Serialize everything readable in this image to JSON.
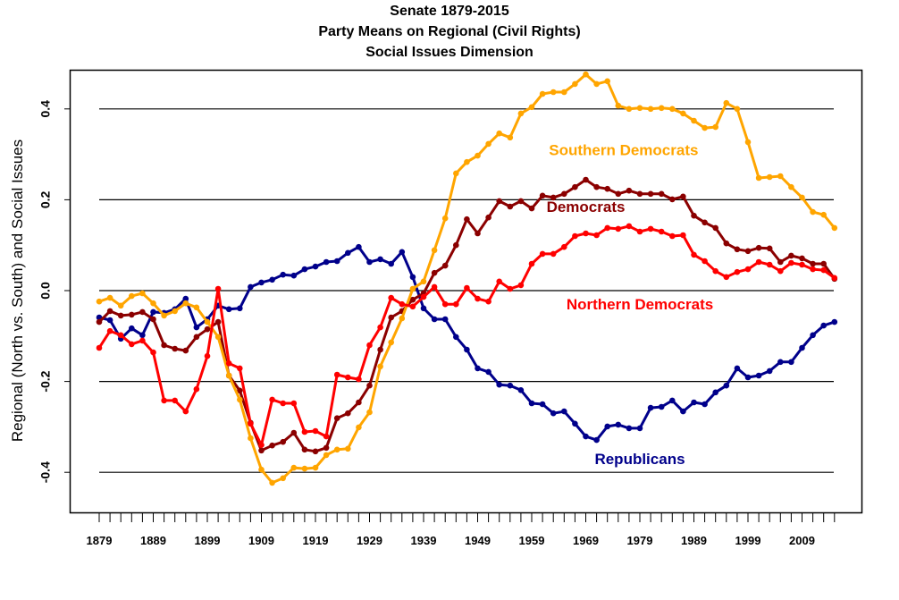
{
  "chart_data": {
    "type": "line",
    "title": "Senate 1879-2015",
    "subtitle_lines": [
      "Party Means on Regional (Civil Rights)",
      "Social Issues Dimension"
    ],
    "xlabel": "",
    "ylabel": "Regional (North vs. South) and Social Issues",
    "ylim": [
      -0.48,
      0.48
    ],
    "xlim": [
      1879,
      2015
    ],
    "grid": "horizontal lines at y ticks",
    "yticks": [
      -0.4,
      -0.2,
      0.0,
      0.2,
      0.4
    ],
    "ytick_labels": [
      "-0.4",
      "-0.2",
      "0.0",
      "0.2",
      "0.4"
    ],
    "xtick_labels": [
      "1879",
      "1889",
      "1899",
      "1909",
      "1919",
      "1929",
      "1939",
      "1949",
      "1959",
      "1969",
      "1979",
      "1989",
      "1999",
      "2009"
    ],
    "xtick_label_years": [
      1879,
      1889,
      1899,
      1909,
      1919,
      1929,
      1939,
      1949,
      1959,
      1969,
      1979,
      1989,
      1999,
      2009
    ],
    "x": [
      1879,
      1881,
      1883,
      1885,
      1887,
      1889,
      1891,
      1893,
      1895,
      1897,
      1899,
      1901,
      1903,
      1905,
      1907,
      1909,
      1911,
      1913,
      1915,
      1917,
      1919,
      1921,
      1923,
      1925,
      1927,
      1929,
      1931,
      1933,
      1935,
      1937,
      1939,
      1941,
      1943,
      1945,
      1947,
      1949,
      1951,
      1953,
      1955,
      1957,
      1959,
      1961,
      1963,
      1965,
      1967,
      1969,
      1971,
      1973,
      1975,
      1977,
      1979,
      1981,
      1983,
      1985,
      1987,
      1989,
      1991,
      1993,
      1995,
      1997,
      1999,
      2001,
      2003,
      2005,
      2007,
      2009,
      2011,
      2013,
      2015
    ],
    "series": [
      {
        "name": "Republicans",
        "color": "#00008B",
        "label_anchor": [
          1979,
          -0.37
        ],
        "values": [
          -0.059,
          -0.065,
          -0.106,
          -0.083,
          -0.098,
          -0.047,
          -0.049,
          -0.041,
          -0.018,
          -0.081,
          -0.063,
          -0.033,
          -0.041,
          -0.039,
          0.008,
          0.018,
          0.024,
          0.035,
          0.033,
          0.047,
          0.053,
          0.063,
          0.065,
          0.083,
          0.096,
          0.063,
          0.069,
          0.059,
          0.085,
          0.03,
          -0.039,
          -0.063,
          -0.063,
          -0.102,
          -0.13,
          -0.171,
          -0.179,
          -0.207,
          -0.209,
          -0.219,
          -0.248,
          -0.25,
          -0.27,
          -0.266,
          -0.293,
          -0.321,
          -0.329,
          -0.299,
          -0.295,
          -0.303,
          -0.303,
          -0.258,
          -0.256,
          -0.242,
          -0.266,
          -0.246,
          -0.25,
          -0.224,
          -0.209,
          -0.171,
          -0.191,
          -0.187,
          -0.177,
          -0.157,
          -0.157,
          -0.126,
          -0.098,
          -0.077,
          -0.069
        ]
      },
      {
        "name": "Democrats",
        "color": "#8B0000",
        "label_anchor": [
          1969,
          0.185
        ],
        "values": [
          -0.069,
          -0.045,
          -0.055,
          -0.053,
          -0.047,
          -0.063,
          -0.12,
          -0.128,
          -0.132,
          -0.102,
          -0.085,
          -0.069,
          -0.187,
          -0.22,
          -0.291,
          -0.352,
          -0.341,
          -0.333,
          -0.313,
          -0.35,
          -0.354,
          -0.346,
          -0.281,
          -0.27,
          -0.246,
          -0.209,
          -0.13,
          -0.059,
          -0.045,
          -0.02,
          -0.006,
          0.039,
          0.055,
          0.1,
          0.157,
          0.126,
          0.161,
          0.197,
          0.185,
          0.197,
          0.181,
          0.209,
          0.205,
          0.213,
          0.228,
          0.244,
          0.228,
          0.224,
          0.213,
          0.22,
          0.213,
          0.213,
          0.213,
          0.201,
          0.207,
          0.165,
          0.15,
          0.138,
          0.104,
          0.091,
          0.087,
          0.094,
          0.093,
          0.063,
          0.077,
          0.071,
          0.059,
          0.059,
          0.026
        ]
      },
      {
        "name": "Southern Democrats",
        "color": "#FFA500",
        "label_anchor": [
          1976,
          0.31
        ],
        "values": [
          -0.024,
          -0.016,
          -0.033,
          -0.012,
          -0.006,
          -0.028,
          -0.055,
          -0.045,
          -0.028,
          -0.037,
          -0.069,
          -0.102,
          -0.187,
          -0.24,
          -0.325,
          -0.394,
          -0.423,
          -0.413,
          -0.39,
          -0.392,
          -0.39,
          -0.362,
          -0.35,
          -0.348,
          -0.301,
          -0.268,
          -0.167,
          -0.114,
          -0.061,
          0.004,
          0.02,
          0.089,
          0.159,
          0.258,
          0.283,
          0.297,
          0.323,
          0.346,
          0.337,
          0.39,
          0.404,
          0.433,
          0.437,
          0.437,
          0.455,
          0.476,
          0.455,
          0.461,
          0.407,
          0.4,
          0.402,
          0.4,
          0.402,
          0.4,
          0.39,
          0.374,
          0.358,
          0.36,
          0.413,
          0.4,
          0.327,
          0.248,
          0.25,
          0.252,
          0.228,
          0.205,
          0.173,
          0.167,
          0.138
        ]
      },
      {
        "name": "Northern Democrats",
        "color": "#FF0000",
        "label_anchor": [
          1979,
          -0.03
        ],
        "values": [
          -0.126,
          -0.089,
          -0.098,
          -0.118,
          -0.11,
          -0.136,
          -0.242,
          -0.242,
          -0.266,
          -0.217,
          -0.144,
          0.004,
          -0.16,
          -0.171,
          -0.293,
          -0.34,
          -0.24,
          -0.248,
          -0.248,
          -0.311,
          -0.309,
          -0.321,
          -0.185,
          -0.191,
          -0.195,
          -0.12,
          -0.081,
          -0.016,
          -0.03,
          -0.035,
          -0.014,
          0.008,
          -0.03,
          -0.03,
          0.006,
          -0.018,
          -0.024,
          0.02,
          0.004,
          0.012,
          0.059,
          0.081,
          0.081,
          0.096,
          0.12,
          0.126,
          0.122,
          0.138,
          0.136,
          0.142,
          0.13,
          0.136,
          0.13,
          0.12,
          0.122,
          0.079,
          0.065,
          0.043,
          0.03,
          0.041,
          0.047,
          0.063,
          0.057,
          0.043,
          0.061,
          0.057,
          0.047,
          0.045,
          0.028
        ]
      }
    ],
    "series_label_order": [
      "Southern Democrats",
      "Democrats",
      "Northern Democrats",
      "Republicans"
    ]
  }
}
